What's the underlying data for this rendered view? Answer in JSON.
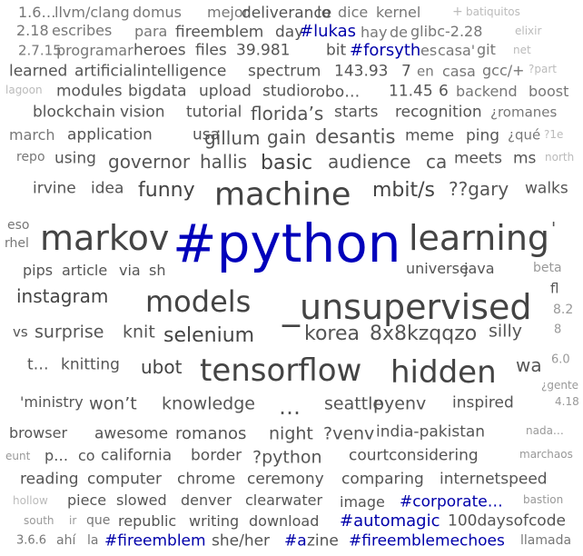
{
  "words": [
    {
      "text": "1.6…",
      "cls": "c3"
    },
    {
      "text": "llvm/clang",
      "cls": "c3"
    },
    {
      "text": "domus",
      "cls": "c3"
    },
    {
      "text": "mejor",
      "cls": "c3"
    },
    {
      "text": "deliverance",
      "cls": "c4"
    },
    {
      "text": "lo",
      "cls": "c4"
    },
    {
      "text": "dice",
      "cls": "c3"
    },
    {
      "text": "kernel",
      "cls": "c3"
    },
    {
      "text": "+",
      "cls": "c1"
    },
    {
      "text": "batiquitos",
      "cls": "c1"
    },
    {
      "text": "2.18",
      "cls": "c3"
    },
    {
      "text": "escribes",
      "cls": "c3"
    },
    {
      "text": "para",
      "cls": "c3"
    },
    {
      "text": "fireemblem",
      "cls": "c4"
    },
    {
      "text": "day",
      "cls": "c4"
    },
    {
      "text": "#lukas",
      "cls": "cb"
    },
    {
      "text": "hay",
      "cls": "c3"
    },
    {
      "text": "de",
      "cls": "c3"
    },
    {
      "text": "glibc-2.28",
      "cls": "c3"
    },
    {
      "text": "elixir",
      "cls": "c1"
    },
    {
      "text": "2.7.15",
      "cls": "c3"
    },
    {
      "text": "programar",
      "cls": "c3"
    },
    {
      "text": "heroes",
      "cls": "c4"
    },
    {
      "text": "files",
      "cls": "c4"
    },
    {
      "text": "39.981",
      "cls": "c4"
    },
    {
      "text": "bit",
      "cls": "c4"
    },
    {
      "text": "#forsyth",
      "cls": "cb"
    },
    {
      "text": "es",
      "cls": "c3"
    },
    {
      "text": "casa'",
      "cls": "c3"
    },
    {
      "text": "git",
      "cls": "c3"
    },
    {
      "text": "net",
      "cls": "c1"
    },
    {
      "text": "learned",
      "cls": "c4"
    },
    {
      "text": "artificialintelligence",
      "cls": "c4"
    },
    {
      "text": "spectrum",
      "cls": "c4"
    },
    {
      "text": "143.93",
      "cls": "c4"
    },
    {
      "text": "7",
      "cls": "c4"
    },
    {
      "text": "en",
      "cls": "c3"
    },
    {
      "text": "casa",
      "cls": "c3"
    },
    {
      "text": "gcc/+",
      "cls": "c3"
    },
    {
      "text": "?part",
      "cls": "c1"
    },
    {
      "text": "lagoon",
      "cls": "c1"
    },
    {
      "text": "modules",
      "cls": "c4"
    },
    {
      "text": "bigdata",
      "cls": "c4"
    },
    {
      "text": "upload",
      "cls": "c4"
    },
    {
      "text": "studio",
      "cls": "c4"
    },
    {
      "text": "robo…",
      "cls": "c4"
    },
    {
      "text": "11.45",
      "cls": "c4"
    },
    {
      "text": "6",
      "cls": "c4"
    },
    {
      "text": "backend",
      "cls": "c3"
    },
    {
      "text": "boost",
      "cls": "c3"
    },
    {
      "text": "blockchain",
      "cls": "c4"
    },
    {
      "text": "vision",
      "cls": "c4"
    },
    {
      "text": "tutorial",
      "cls": "c4"
    },
    {
      "text": "florida’s",
      "cls": "c4"
    },
    {
      "text": "starts",
      "cls": "c4"
    },
    {
      "text": "recognition",
      "cls": "c4"
    },
    {
      "text": "¿romanes",
      "cls": "c3"
    },
    {
      "text": "march",
      "cls": "c3"
    },
    {
      "text": "application",
      "cls": "c4"
    },
    {
      "text": "usa",
      "cls": "c4"
    },
    {
      "text": "gillum",
      "cls": "c4"
    },
    {
      "text": "gain",
      "cls": "c4"
    },
    {
      "text": "desantis",
      "cls": "c4"
    },
    {
      "text": "meme",
      "cls": "c4"
    },
    {
      "text": "ping",
      "cls": "c4"
    },
    {
      "text": "¿qué",
      "cls": "c3"
    },
    {
      "text": "?1e",
      "cls": "c1"
    },
    {
      "text": "repo",
      "cls": "c3"
    },
    {
      "text": "using",
      "cls": "c4"
    },
    {
      "text": "governor",
      "cls": "c4"
    },
    {
      "text": "hallis",
      "cls": "c4"
    },
    {
      "text": "basic",
      "cls": "c5"
    },
    {
      "text": "audience",
      "cls": "c4"
    },
    {
      "text": "ca",
      "cls": "c4"
    },
    {
      "text": "meets",
      "cls": "c4"
    },
    {
      "text": "ms",
      "cls": "c4"
    },
    {
      "text": "north",
      "cls": "c1"
    },
    {
      "text": "irvine",
      "cls": "c4"
    },
    {
      "text": "idea",
      "cls": "c4"
    },
    {
      "text": "funny",
      "cls": "c5"
    },
    {
      "text": "machine",
      "cls": "c5"
    },
    {
      "text": "mbit/s",
      "cls": "c5"
    },
    {
      "text": "??gary",
      "cls": "c4"
    },
    {
      "text": "walks",
      "cls": "c4"
    },
    {
      "text": "eso",
      "cls": "c3"
    },
    {
      "text": "rhel",
      "cls": "c3"
    },
    {
      "text": "markov",
      "cls": "c5"
    },
    {
      "text": "#python",
      "cls": "cbd"
    },
    {
      "text": "learning",
      "cls": "c5"
    },
    {
      "text": "'",
      "cls": "c4"
    },
    {
      "text": "pips",
      "cls": "c4"
    },
    {
      "text": "article",
      "cls": "c4"
    },
    {
      "text": "via",
      "cls": "c4"
    },
    {
      "text": "sh",
      "cls": "c4"
    },
    {
      "text": "universe",
      "cls": "c4"
    },
    {
      "text": "java",
      "cls": "c4"
    },
    {
      "text": "beta",
      "cls": "c2"
    },
    {
      "text": "instagram",
      "cls": "c5"
    },
    {
      "text": "models",
      "cls": "c5"
    },
    {
      "text": "_unsupervised",
      "cls": "c5"
    },
    {
      "text": "fl",
      "cls": "c4"
    },
    {
      "text": "8.2",
      "cls": "c2"
    },
    {
      "text": "vs",
      "cls": "c4"
    },
    {
      "text": "surprise",
      "cls": "c4"
    },
    {
      "text": "knit",
      "cls": "c4"
    },
    {
      "text": "selenium",
      "cls": "c5"
    },
    {
      "text": "korea",
      "cls": "c4"
    },
    {
      "text": "8x8kzqqzo",
      "cls": "c4"
    },
    {
      "text": "silly",
      "cls": "c4"
    },
    {
      "text": "8",
      "cls": "c2"
    },
    {
      "text": "t…",
      "cls": "c4"
    },
    {
      "text": "knitting",
      "cls": "c4"
    },
    {
      "text": "ubot",
      "cls": "c5"
    },
    {
      "text": "tensorflow",
      "cls": "c5"
    },
    {
      "text": "hidden",
      "cls": "c5"
    },
    {
      "text": "wa",
      "cls": "c4"
    },
    {
      "text": "6.0",
      "cls": "c2"
    },
    {
      "text": "¿gente",
      "cls": "c2"
    },
    {
      "text": "'ministry",
      "cls": "c4"
    },
    {
      "text": "won’t",
      "cls": "c4"
    },
    {
      "text": "knowledge",
      "cls": "c4"
    },
    {
      "text": "…",
      "cls": "c4"
    },
    {
      "text": "seattle",
      "cls": "c4"
    },
    {
      "text": "pyenv",
      "cls": "c4"
    },
    {
      "text": "inspired",
      "cls": "c4"
    },
    {
      "text": "4.18",
      "cls": "c2"
    },
    {
      "text": "browser",
      "cls": "c4"
    },
    {
      "text": "awesome",
      "cls": "c4"
    },
    {
      "text": "romanos",
      "cls": "c4"
    },
    {
      "text": "night",
      "cls": "c4"
    },
    {
      "text": "?venv",
      "cls": "c4"
    },
    {
      "text": "india-pakistan",
      "cls": "c4"
    },
    {
      "text": "nada…",
      "cls": "c2"
    },
    {
      "text": "eunt",
      "cls": "c2"
    },
    {
      "text": "p…",
      "cls": "c4"
    },
    {
      "text": "co",
      "cls": "c4"
    },
    {
      "text": "california",
      "cls": "c4"
    },
    {
      "text": "border",
      "cls": "c4"
    },
    {
      "text": "?python",
      "cls": "c4"
    },
    {
      "text": "court",
      "cls": "c4"
    },
    {
      "text": "considering",
      "cls": "c4"
    },
    {
      "text": "marchaos",
      "cls": "c2"
    },
    {
      "text": "reading",
      "cls": "c4"
    },
    {
      "text": "computer",
      "cls": "c4"
    },
    {
      "text": "chrome",
      "cls": "c4"
    },
    {
      "text": "ceremony",
      "cls": "c4"
    },
    {
      "text": "comparing",
      "cls": "c4"
    },
    {
      "text": "internetspeed",
      "cls": "c4"
    },
    {
      "text": "hollow",
      "cls": "c1"
    },
    {
      "text": "piece",
      "cls": "c4"
    },
    {
      "text": "slowed",
      "cls": "c4"
    },
    {
      "text": "denver",
      "cls": "c4"
    },
    {
      "text": "clearwater",
      "cls": "c4"
    },
    {
      "text": "image",
      "cls": "c4"
    },
    {
      "text": "#corporate…",
      "cls": "cb"
    },
    {
      "text": "bastion",
      "cls": "c2"
    },
    {
      "text": "south",
      "cls": "c2"
    },
    {
      "text": "ir",
      "cls": "c2"
    },
    {
      "text": "que",
      "cls": "c3"
    },
    {
      "text": "republic",
      "cls": "c4"
    },
    {
      "text": "writing",
      "cls": "c4"
    },
    {
      "text": "download",
      "cls": "c4"
    },
    {
      "text": "#automagic",
      "cls": "cb"
    },
    {
      "text": "100daysofcode",
      "cls": "c4"
    },
    {
      "text": "3.6.6",
      "cls": "c3"
    },
    {
      "text": "ahí",
      "cls": "c3"
    },
    {
      "text": "la",
      "cls": "c3"
    },
    {
      "text": "#fireemblem",
      "cls": "cb"
    },
    {
      "text": "she/her",
      "cls": "c4"
    },
    {
      "text": "#a",
      "cls": "cb"
    },
    {
      "text": "zine",
      "cls": "c4"
    },
    {
      "text": "#fireemblemechoes",
      "cls": "cb"
    },
    {
      "text": "llamada",
      "cls": "c3"
    }
  ]
}
